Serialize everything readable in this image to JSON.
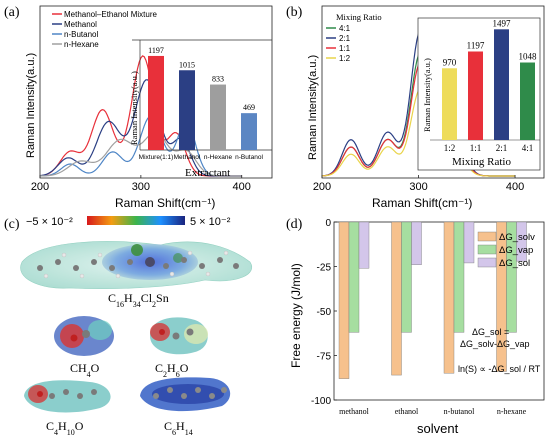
{
  "panels": {
    "a": "(a)",
    "b": "(b)",
    "c": "(c)",
    "d": "(d)"
  },
  "chart_data": [
    {
      "id": "a",
      "type": "line",
      "xlabel": "Raman Shift(cm⁻¹)",
      "ylabel": "Raman Intensity(a.u.)",
      "xticks": [
        200,
        300,
        400
      ],
      "xlim": [
        200,
        430
      ],
      "legend": [
        {
          "name": "Methanol–Ethanol Mixture",
          "color": "#e8303a"
        },
        {
          "name": "Methanol",
          "color": "#2b3f84"
        },
        {
          "name": "n-Butanol",
          "color": "#4f86c6"
        },
        {
          "name": "n-Hexane",
          "color": "#a0a0a0"
        }
      ],
      "inset": {
        "type": "bar",
        "xlabel": "Extractant",
        "ylabel": "Raman Intensity(a.u.)",
        "categories": [
          "Mixture(1:1)",
          "Methanol",
          "n-Hexane",
          "n-Butanol"
        ],
        "values": [
          1197,
          1015,
          833,
          469
        ],
        "colors": [
          "#e8303a",
          "#2b3f84",
          "#9e9e9e",
          "#5b86c3"
        ]
      }
    },
    {
      "id": "b",
      "type": "line",
      "xlabel": "Raman Shift(cm⁻¹)",
      "ylabel": "Raman Intensity(a.u.)",
      "xticks": [
        200,
        300,
        400
      ],
      "xlim": [
        200,
        430
      ],
      "legend_title": "Mixing Ratio",
      "legend": [
        {
          "name": "4:1",
          "color": "#2f8b4a"
        },
        {
          "name": "2:1",
          "color": "#2b3f84"
        },
        {
          "name": "1:1",
          "color": "#e8303a"
        },
        {
          "name": "1:2",
          "color": "#e9d44a"
        }
      ],
      "inset": {
        "type": "bar",
        "xlabel": "Mixing Ratio",
        "ylabel": "Raman Intensity(a.u.)",
        "categories": [
          "1:2",
          "1:1",
          "2:1",
          "4:1"
        ],
        "values": [
          970,
          1197,
          1497,
          1048
        ],
        "colors": [
          "#eedc5b",
          "#e8303a",
          "#2b3f84",
          "#2f8b4a"
        ]
      }
    },
    {
      "id": "d",
      "type": "bar",
      "xlabel": "solvent",
      "ylabel": "Free energy (J/mol)",
      "categories": [
        "methanol",
        "ethanol",
        "n-butanol",
        "n-hexane"
      ],
      "ylim": [
        -100,
        0
      ],
      "yticks": [
        0,
        -25,
        -50,
        -75,
        -100
      ],
      "series": [
        {
          "name": "ΔG_solv",
          "color": "#f6c18d",
          "values": [
            -88,
            -86,
            -85,
            -84
          ]
        },
        {
          "name": "ΔG_vap",
          "color": "#a6dea0",
          "values": [
            -62,
            -62,
            -62,
            -62
          ]
        },
        {
          "name": "ΔG_sol",
          "color": "#d3c6ea",
          "values": [
            -26,
            -24,
            -23,
            -22
          ]
        }
      ],
      "annotations": [
        "ΔG_sol =",
        "ΔG_solv-ΔG_vap",
        "ln(S) ∝ -ΔG_sol / RT"
      ]
    }
  ],
  "colorbar": {
    "min_label": "−5 × 10⁻²",
    "max_label": "5 × 10⁻²"
  },
  "molecules": [
    {
      "formula": "C16H34Cl2Sn",
      "parts": [
        "C",
        "16",
        "H",
        "34",
        "Cl",
        "2",
        "Sn"
      ]
    },
    {
      "formula": "CH4O",
      "parts": [
        "CH",
        "4",
        "O"
      ]
    },
    {
      "formula": "C2H6O",
      "parts": [
        "C",
        "2",
        "H",
        "6",
        "O"
      ]
    },
    {
      "formula": "C4H10O",
      "parts": [
        "C",
        "4",
        "H",
        "10",
        "O"
      ]
    },
    {
      "formula": "C6H14",
      "parts": [
        "C",
        "6",
        "H",
        "14"
      ]
    }
  ]
}
